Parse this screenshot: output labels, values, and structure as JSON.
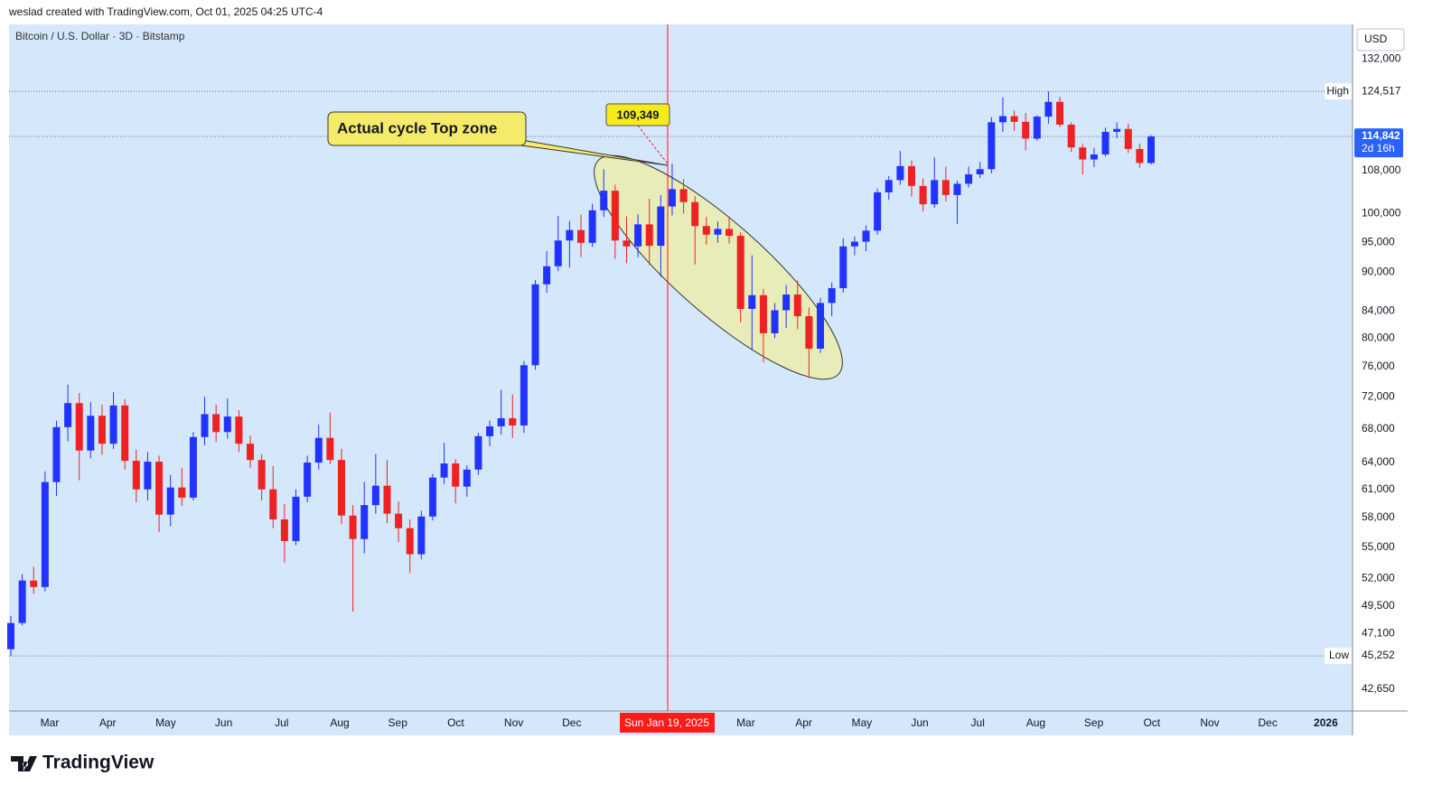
{
  "header": "weslad created with TradingView.com, Oct 01, 2025 04:25 UTC-4",
  "logo": "TradingView",
  "chart_data": {
    "type": "candlestick",
    "title": "Bitcoin / U.S. Dollar · 3D · Bitstamp",
    "currency": "USD",
    "log_scale": true,
    "grid": false,
    "up_color": "#2233ff",
    "down_color": "#ee2222",
    "background": "#d4e7fb",
    "candles": [
      [
        45800,
        48600,
        45252,
        48000
      ],
      [
        48000,
        52400,
        47800,
        51800
      ],
      [
        51800,
        53100,
        50600,
        51200
      ],
      [
        51200,
        63000,
        50800,
        61800
      ],
      [
        61800,
        69000,
        60300,
        68200
      ],
      [
        68200,
        73600,
        66500,
        71200
      ],
      [
        71200,
        72500,
        62000,
        65400
      ],
      [
        65400,
        71300,
        64500,
        69600
      ],
      [
        69600,
        71000,
        64900,
        66200
      ],
      [
        66200,
        72600,
        65600,
        70900
      ],
      [
        70900,
        71700,
        63200,
        64200
      ],
      [
        64200,
        65500,
        59600,
        61000
      ],
      [
        61000,
        65200,
        59800,
        64100
      ],
      [
        64100,
        64800,
        56500,
        58300
      ],
      [
        58300,
        62600,
        57100,
        61200
      ],
      [
        61200,
        63400,
        59200,
        60100
      ],
      [
        60100,
        67600,
        59800,
        67000
      ],
      [
        67000,
        72000,
        66000,
        69800
      ],
      [
        69800,
        71000,
        66400,
        67600
      ],
      [
        67600,
        71800,
        66800,
        69500
      ],
      [
        69500,
        70300,
        65200,
        66200
      ],
      [
        66200,
        67200,
        63400,
        64300
      ],
      [
        64300,
        65000,
        59800,
        61000
      ],
      [
        61000,
        63600,
        56900,
        57800
      ],
      [
        57800,
        59400,
        53500,
        55600
      ],
      [
        55600,
        61000,
        55200,
        60200
      ],
      [
        60200,
        64800,
        59600,
        64000
      ],
      [
        64000,
        68500,
        63200,
        66900
      ],
      [
        66900,
        70000,
        63800,
        64300
      ],
      [
        64300,
        65600,
        57300,
        58200
      ],
      [
        58200,
        59300,
        49000,
        55800
      ],
      [
        55800,
        61800,
        54400,
        59300
      ],
      [
        59300,
        65000,
        58400,
        61400
      ],
      [
        61400,
        64300,
        57400,
        58400
      ],
      [
        58400,
        59700,
        55500,
        56900
      ],
      [
        56900,
        57800,
        52500,
        54300
      ],
      [
        54300,
        58700,
        53800,
        58100
      ],
      [
        58100,
        62700,
        57700,
        62300
      ],
      [
        62300,
        66300,
        61600,
        63900
      ],
      [
        63900,
        64400,
        59500,
        61300
      ],
      [
        61300,
        63700,
        60200,
        63200
      ],
      [
        63200,
        67500,
        62600,
        67100
      ],
      [
        67100,
        69000,
        65900,
        68300
      ],
      [
        68300,
        72900,
        67300,
        69300
      ],
      [
        69300,
        72300,
        66900,
        68400
      ],
      [
        68400,
        76800,
        67500,
        76200
      ],
      [
        76200,
        88800,
        75600,
        88100
      ],
      [
        88100,
        93500,
        86800,
        91000
      ],
      [
        91000,
        99600,
        90200,
        95300
      ],
      [
        95300,
        98700,
        90800,
        97100
      ],
      [
        97100,
        99800,
        92500,
        94900
      ],
      [
        94900,
        101800,
        94200,
        100600
      ],
      [
        100600,
        108300,
        99400,
        104200
      ],
      [
        104200,
        105300,
        92200,
        95300
      ],
      [
        95300,
        99500,
        91500,
        94300
      ],
      [
        94300,
        99900,
        92500,
        98100
      ],
      [
        98100,
        102700,
        91200,
        94400
      ],
      [
        94400,
        103400,
        89300,
        101300
      ],
      [
        101300,
        109349,
        99700,
        104500
      ],
      [
        104500,
        106400,
        100000,
        102100
      ],
      [
        102100,
        103200,
        91300,
        97800
      ],
      [
        97800,
        99400,
        94600,
        96300
      ],
      [
        96300,
        98600,
        94900,
        97300
      ],
      [
        97300,
        99500,
        94800,
        96100
      ],
      [
        96100,
        96700,
        82300,
        84300
      ],
      [
        84300,
        92800,
        78300,
        86400
      ],
      [
        86400,
        87400,
        76600,
        80700
      ],
      [
        80700,
        85200,
        80000,
        84100
      ],
      [
        84100,
        88000,
        81500,
        86500
      ],
      [
        86500,
        88700,
        81300,
        83200
      ],
      [
        83200,
        84500,
        74500,
        78500
      ],
      [
        78500,
        86000,
        77900,
        85200
      ],
      [
        85200,
        88400,
        83200,
        87500
      ],
      [
        87500,
        95700,
        86800,
        94300
      ],
      [
        94300,
        96000,
        92800,
        95100
      ],
      [
        95100,
        97900,
        93500,
        97000
      ],
      [
        97000,
        104600,
        96300,
        103900
      ],
      [
        103900,
        107000,
        102500,
        106200
      ],
      [
        106200,
        111900,
        105300,
        108900
      ],
      [
        108900,
        110000,
        103100,
        105100
      ],
      [
        105100,
        106500,
        100400,
        101700
      ],
      [
        101700,
        110600,
        101000,
        106200
      ],
      [
        106200,
        108800,
        102200,
        103400
      ],
      [
        103400,
        106100,
        98200,
        105500
      ],
      [
        105500,
        108800,
        104800,
        107300
      ],
      [
        107300,
        109700,
        106600,
        108300
      ],
      [
        108300,
        118900,
        107500,
        117800
      ],
      [
        117800,
        123200,
        115800,
        119100
      ],
      [
        119100,
        120300,
        116000,
        117900
      ],
      [
        117900,
        119800,
        112000,
        114400
      ],
      [
        114400,
        119300,
        114000,
        119000
      ],
      [
        119000,
        124517,
        117500,
        122200
      ],
      [
        122200,
        123300,
        116800,
        117300
      ],
      [
        117300,
        117800,
        111700,
        112600
      ],
      [
        112600,
        113300,
        107300,
        110200
      ],
      [
        110200,
        112500,
        108700,
        111200
      ],
      [
        111200,
        116700,
        110800,
        115800
      ],
      [
        115800,
        117800,
        114500,
        116400
      ],
      [
        116400,
        117500,
        111500,
        112300
      ],
      [
        112300,
        113400,
        108600,
        109500
      ],
      [
        109500,
        115100,
        109200,
        114842
      ]
    ],
    "x_labels": [
      "Mar",
      "Apr",
      "May",
      "Jun",
      "Jul",
      "Aug",
      "Sep",
      "Oct",
      "Nov",
      "Dec",
      null,
      null,
      "Mar",
      "Apr",
      "May",
      "Jun",
      "Jul",
      "Aug",
      "Sep",
      "Oct",
      "Nov",
      "Dec",
      "2026"
    ],
    "ylim": [
      41000,
      140400
    ],
    "yticks": [
      {
        "value": 42650,
        "label": "42,650"
      },
      {
        "value": 47100,
        "label": "47,100"
      },
      {
        "value": 49500,
        "label": "49,500"
      },
      {
        "value": 52000,
        "label": "52,000"
      },
      {
        "value": 55000,
        "label": "55,000"
      },
      {
        "value": 58000,
        "label": "58,000"
      },
      {
        "value": 61000,
        "label": "61,000"
      },
      {
        "value": 64000,
        "label": "64,000"
      },
      {
        "value": 68000,
        "label": "68,000"
      },
      {
        "value": 72000,
        "label": "72,000"
      },
      {
        "value": 76000,
        "label": "76,000"
      },
      {
        "value": 80000,
        "label": "80,000"
      },
      {
        "value": 84000,
        "label": "84,000"
      },
      {
        "value": 90000,
        "label": "90,000"
      },
      {
        "value": 95000,
        "label": "95,000"
      },
      {
        "value": 100000,
        "label": "100,000"
      },
      {
        "value": 108000,
        "label": "108,000"
      },
      {
        "value": 132000,
        "label": "132,000"
      }
    ],
    "high": {
      "name": "High",
      "price": {
        "value": 124517,
        "label": "124,517"
      }
    },
    "low": {
      "name": "Low",
      "price": {
        "value": 45252,
        "label": "45,252"
      }
    },
    "last": {
      "price": {
        "value": 114842,
        "label": "114,842"
      },
      "countdown": "2d 16h",
      "color": "#2962ff"
    },
    "crosshair": {
      "label": "Sun Jan 19, 2025",
      "color": "#ff1a1a"
    },
    "annotations": [
      {
        "text": "Actual cycle Top zone"
      },
      {
        "price": {
          "value": 109349,
          "label": "109,349"
        }
      }
    ]
  }
}
